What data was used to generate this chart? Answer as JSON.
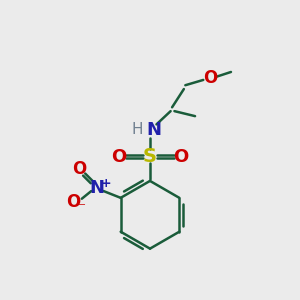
{
  "background_color": "#ebebeb",
  "bond_color": "#1a5c3a",
  "bond_width": 1.8,
  "S_color": "#b8b800",
  "N_color": "#2020aa",
  "O_color": "#cc0000",
  "H_color": "#708090",
  "figsize": [
    3.0,
    3.0
  ],
  "dpi": 100,
  "xlim": [
    0,
    10
  ],
  "ylim": [
    0,
    10
  ]
}
